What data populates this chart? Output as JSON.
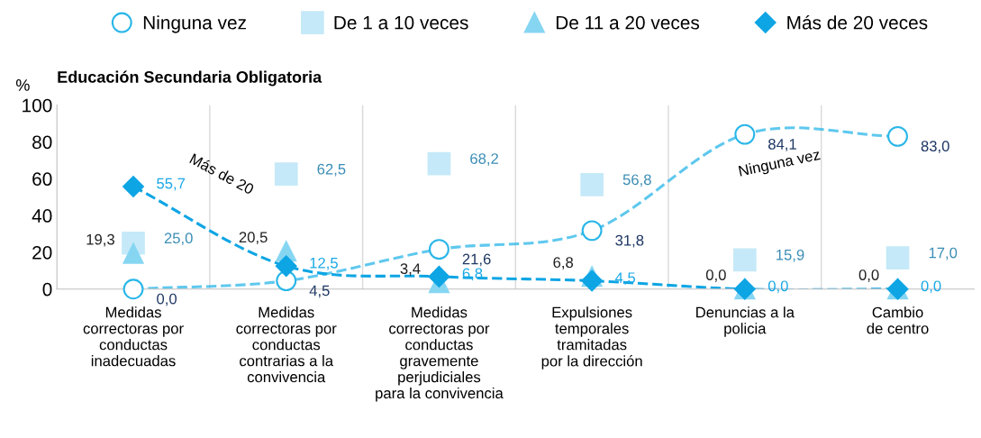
{
  "chart_data": {
    "type": "scatter",
    "title": "Educación Secundaria Obligatoria",
    "ylabel": "%",
    "categories": [
      "Medidas\ncorrectoras por\nconductas\ninadecuadas",
      "Medidas\ncorrectoras por\nconductas\ncontrarias a la\nconvivencia",
      "Medidas\ncorrectoras por\nconductas\ngravemente\nperjudiciales\npara la convivencia",
      "Expulsiones\ntemporales\ntramitadas\npor la dirección",
      "Denuncias a la\npolicia",
      "Cambio\nde centro"
    ],
    "series": [
      {
        "name": "Ninguna vez",
        "type": "line",
        "marker": "circle",
        "line_style": "dashed",
        "color": "#29b6e8",
        "values": [
          0.0,
          4.5,
          21.6,
          31.8,
          84.1,
          83.0
        ],
        "value_labels": [
          "0,0",
          "4,5",
          "21,6",
          "31,8",
          "84,1",
          "83,0"
        ]
      },
      {
        "name": "De 1 a 10 veces",
        "marker": "square",
        "color": "#c5e9f8",
        "values": [
          25.0,
          62.5,
          68.2,
          56.8,
          15.9,
          17.0
        ],
        "value_labels": [
          "25,0",
          "62,5",
          "68,2",
          "56,8",
          "15,9",
          "17,0"
        ]
      },
      {
        "name": "De 11 a 20 veces",
        "marker": "triangle",
        "color": "#86d6f2",
        "values": [
          19.3,
          20.5,
          3.4,
          6.8,
          0.0,
          0.0
        ],
        "value_labels": [
          "19,3",
          "20,5",
          "3,4",
          "6,8",
          "0,0",
          "0,0"
        ]
      },
      {
        "name": "Más de 20 veces",
        "type": "line",
        "marker": "diamond",
        "line_style": "dashed",
        "color": "#0ea5e4",
        "values": [
          55.7,
          12.5,
          6.8,
          4.5,
          0.0,
          0.0
        ],
        "value_labels": [
          "55,7",
          "12,5",
          "6,8",
          "4,5",
          "0,0",
          "0,0"
        ]
      }
    ],
    "annotations": [
      "Más de 20",
      "Ninguna vez"
    ],
    "ylim": [
      0,
      100
    ],
    "yticks": [
      0,
      20,
      40,
      60,
      80,
      100
    ],
    "grid": "x",
    "legend": "top"
  }
}
